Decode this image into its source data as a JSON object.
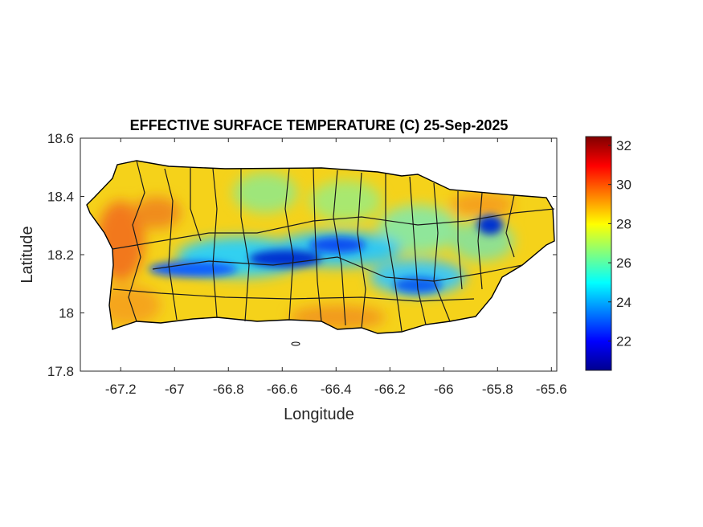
{
  "map": {
    "title": "EFFECTIVE SURFACE TEMPERATURE (C) 25-Sep-2025",
    "xlabel": "Longitude",
    "ylabel": "Latitude",
    "xlim": [
      -67.35,
      -65.58
    ],
    "ylim": [
      17.8,
      18.6
    ],
    "xticks": [
      "-67.2",
      "-67",
      "-66.8",
      "-66.6",
      "-66.4",
      "-66.2",
      "-66",
      "-65.8",
      "-65.6"
    ],
    "xtick_values": [
      -67.2,
      -67,
      -66.8,
      -66.6,
      -66.4,
      -66.2,
      -66,
      -65.8,
      -65.6
    ],
    "yticks": [
      "17.8",
      "18",
      "18.2",
      "18.4",
      "18.6"
    ],
    "ytick_values": [
      17.8,
      18.0,
      18.2,
      18.4,
      18.6
    ],
    "colorbar": {
      "ticks": [
        "22",
        "24",
        "26",
        "28",
        "30",
        "32"
      ],
      "tick_values": [
        22,
        24,
        26,
        28,
        30,
        32
      ],
      "range": [
        20.5,
        32.45
      ],
      "colormap": "jet"
    }
  }
}
